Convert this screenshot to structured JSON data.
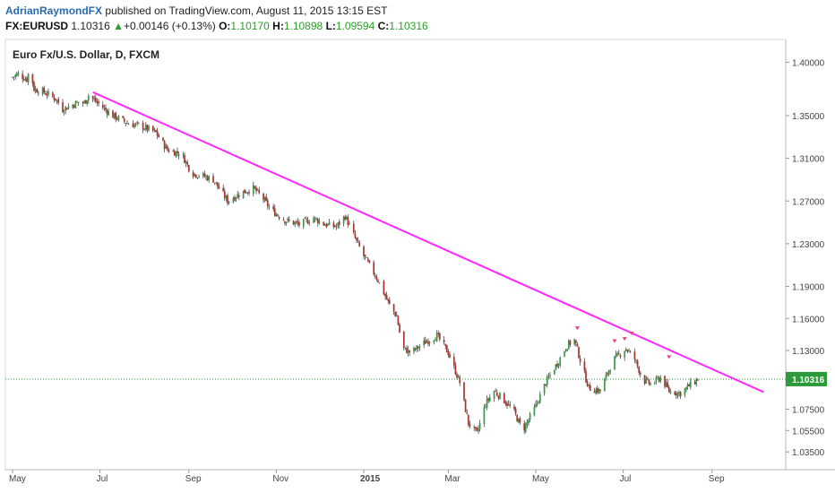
{
  "header": {
    "author": "AdrianRaymondFX",
    "published_text": "published on TradingView.com, August 11, 2015 13:15 EST",
    "symbol": "FX:EURUSD",
    "last": "1.10316",
    "change_arrow": "▲",
    "change": "+0.00146 (+0.13%)",
    "o_label": "O:",
    "o_value": "1.10170",
    "h_label": "H:",
    "h_value": "1.10898",
    "l_label": "L:",
    "l_value": "1.09594",
    "c_label": "C:",
    "c_value": "1.10316"
  },
  "colors": {
    "up": "#3a9a4a",
    "down": "#a8342c",
    "wick": "#333333",
    "trendline": "#ff28ff",
    "marker": "#e8417a",
    "last_price": "#2a9a3a"
  },
  "chart_data": {
    "type": "candlestick",
    "title": "Euro Fx/U.S. Dollar, D, FXCM",
    "ylim": [
      1.02,
      1.418
    ],
    "y_ticks": [
      "1.40000",
      "1.35000",
      "1.31000",
      "1.27000",
      "1.23000",
      "1.19000",
      "1.16000",
      "1.13000",
      "1.10316",
      "1.07500",
      "1.05500",
      "1.03500"
    ],
    "x_ticks": [
      "May",
      "Jul",
      "Sep",
      "Nov",
      "2015",
      "Mar",
      "May",
      "Jul",
      "Sep"
    ],
    "x_tick_days": [
      0,
      61,
      123,
      184,
      245,
      304,
      365,
      426,
      488
    ],
    "bold_tick": "2015",
    "last_price": 1.10316,
    "last_price_label": "1.10316",
    "total_days": 478,
    "anchors": [
      [
        0,
        1.386
      ],
      [
        4,
        1.389
      ],
      [
        10,
        1.384
      ],
      [
        12,
        1.394
      ],
      [
        15,
        1.375
      ],
      [
        22,
        1.372
      ],
      [
        30,
        1.366
      ],
      [
        35,
        1.356
      ],
      [
        45,
        1.362
      ],
      [
        50,
        1.362
      ],
      [
        53,
        1.369
      ],
      [
        60,
        1.361
      ],
      [
        70,
        1.35
      ],
      [
        80,
        1.343
      ],
      [
        90,
        1.34
      ],
      [
        100,
        1.334
      ],
      [
        108,
        1.318
      ],
      [
        118,
        1.314
      ],
      [
        125,
        1.296
      ],
      [
        132,
        1.294
      ],
      [
        140,
        1.29
      ],
      [
        150,
        1.27
      ],
      [
        160,
        1.278
      ],
      [
        168,
        1.282
      ],
      [
        175,
        1.272
      ],
      [
        180,
        1.262
      ],
      [
        190,
        1.252
      ],
      [
        200,
        1.248
      ],
      [
        210,
        1.254
      ],
      [
        218,
        1.248
      ],
      [
        226,
        1.246
      ],
      [
        232,
        1.256
      ],
      [
        240,
        1.232
      ],
      [
        246,
        1.216
      ],
      [
        255,
        1.196
      ],
      [
        262,
        1.175
      ],
      [
        268,
        1.162
      ],
      [
        272,
        1.132
      ],
      [
        278,
        1.128
      ],
      [
        288,
        1.138
      ],
      [
        296,
        1.144
      ],
      [
        304,
        1.128
      ],
      [
        312,
        1.1
      ],
      [
        318,
        1.062
      ],
      [
        324,
        1.052
      ],
      [
        330,
        1.08
      ],
      [
        336,
        1.092
      ],
      [
        342,
        1.085
      ],
      [
        350,
        1.072
      ],
      [
        356,
        1.055
      ],
      [
        364,
        1.075
      ],
      [
        372,
        1.1
      ],
      [
        380,
        1.118
      ],
      [
        387,
        1.135
      ],
      [
        392,
        1.14
      ],
      [
        398,
        1.112
      ],
      [
        402,
        1.095
      ],
      [
        410,
        1.092
      ],
      [
        416,
        1.112
      ],
      [
        420,
        1.122
      ],
      [
        428,
        1.132
      ],
      [
        434,
        1.122
      ],
      [
        440,
        1.102
      ],
      [
        446,
        1.098
      ],
      [
        452,
        1.105
      ],
      [
        458,
        1.092
      ],
      [
        466,
        1.09
      ],
      [
        472,
        1.097
      ],
      [
        478,
        1.103
      ]
    ],
    "trendline": {
      "from": [
        56,
        1.372
      ],
      "to": [
        524,
        1.091
      ]
    },
    "markers": [
      [
        394,
        1.15
      ],
      [
        420,
        1.138
      ],
      [
        427,
        1.14
      ],
      [
        432,
        1.145
      ],
      [
        458,
        1.123
      ]
    ]
  }
}
